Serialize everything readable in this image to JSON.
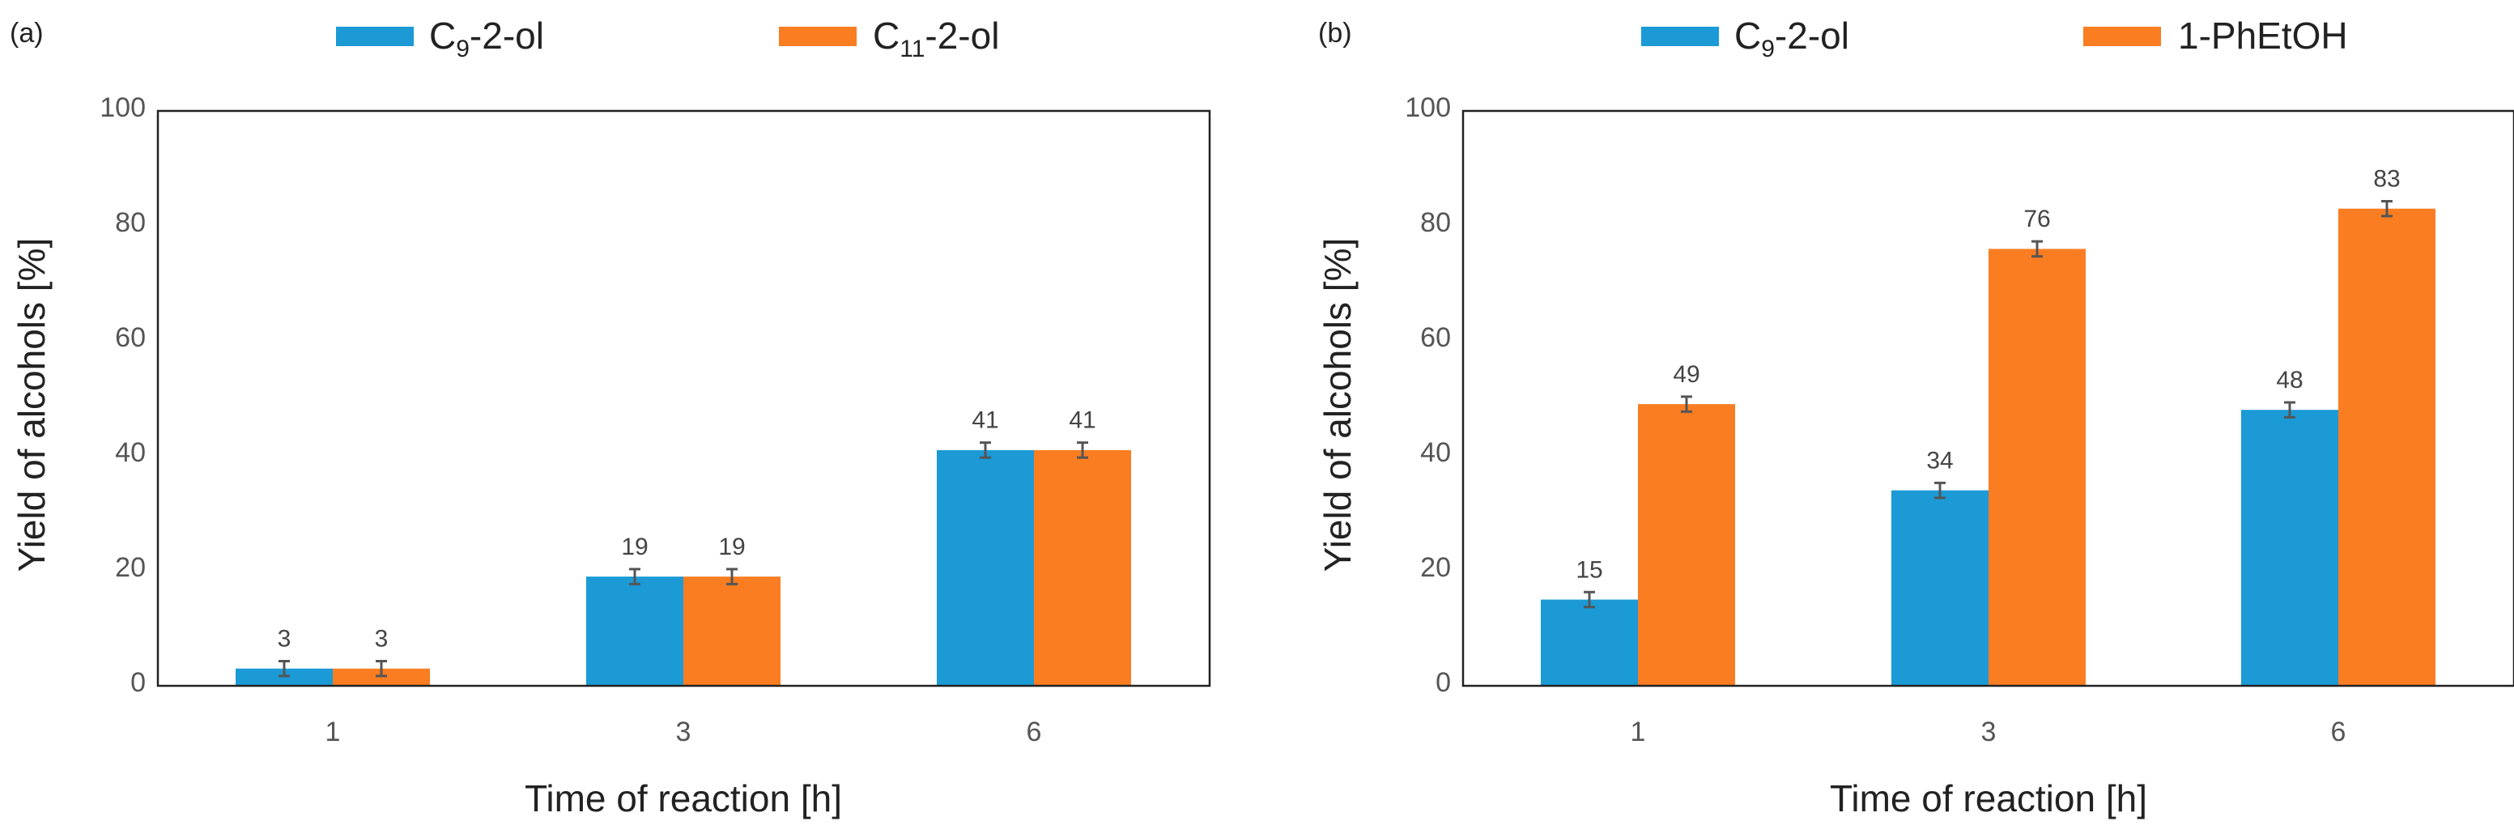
{
  "chart_data": [
    {
      "panel_label": "(a)",
      "type": "bar",
      "categories": [
        "1",
        "3",
        "6"
      ],
      "series": [
        {
          "name_main": "C",
          "name_sub": "9",
          "name_tail": "-2-ol",
          "color": "#1b9ad6",
          "values": [
            3,
            19,
            41
          ],
          "labels": [
            "3",
            "19",
            "41"
          ],
          "errors": [
            1.3,
            1.3,
            1.3
          ]
        },
        {
          "name_main": "C",
          "name_sub": "11",
          "name_tail": "-2-ol",
          "color": "#fa7d22",
          "values": [
            3,
            19,
            41
          ],
          "labels": [
            "3",
            "19",
            "41"
          ],
          "errors": [
            1.3,
            1.3,
            1.3
          ]
        }
      ],
      "xlabel": "Time of reaction [h]",
      "ylabel": "Yield of alcohols [%]",
      "ylim": [
        0,
        100
      ],
      "yticks": [
        "0",
        "20",
        "40",
        "60",
        "80",
        "100"
      ],
      "legend_position": "top",
      "grid": false
    },
    {
      "panel_label": "(b)",
      "type": "bar",
      "categories": [
        "1",
        "3",
        "6"
      ],
      "series": [
        {
          "name_main": "C",
          "name_sub": "9",
          "name_tail": "-2-ol",
          "color": "#1b9ad6",
          "values": [
            15,
            34,
            48
          ],
          "labels": [
            "15",
            "34",
            "48"
          ],
          "errors": [
            1.3,
            1.3,
            1.3
          ]
        },
        {
          "name_main": "1-PhEtOH",
          "name_sub": "",
          "name_tail": "",
          "color": "#fa7d22",
          "values": [
            49,
            76,
            83
          ],
          "labels": [
            "49",
            "76",
            "83"
          ],
          "errors": [
            1.3,
            1.3,
            1.3
          ]
        }
      ],
      "xlabel": "Time of reaction [h]",
      "ylabel": "Yield of alcohols [%]",
      "ylim": [
        0,
        100
      ],
      "yticks": [
        "0",
        "20",
        "40",
        "60",
        "80",
        "100"
      ],
      "legend_position": "top",
      "grid": false
    }
  ]
}
